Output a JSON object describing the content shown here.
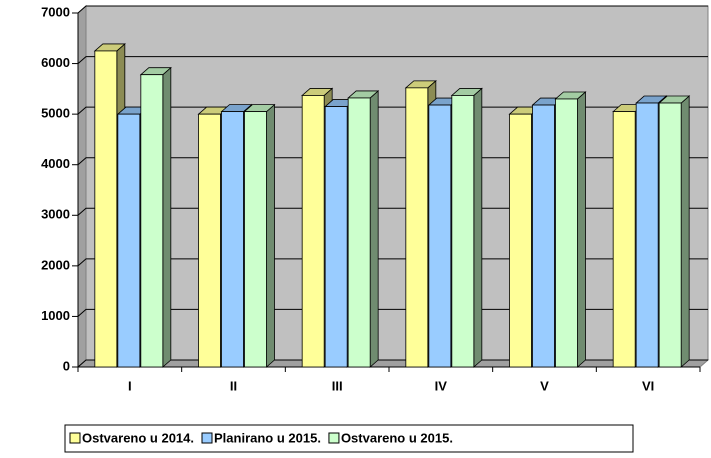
{
  "chart_data": {
    "type": "bar",
    "categories": [
      "I",
      "II",
      "III",
      "IV",
      "V",
      "VI"
    ],
    "series": [
      {
        "name": "Ostvareno u 2014.",
        "color": "#ffff99",
        "values": [
          6250,
          5000,
          5370,
          5520,
          5000,
          5050
        ]
      },
      {
        "name": "Planirano u 2015.",
        "color": "#99ccff",
        "values": [
          5000,
          5050,
          5150,
          5180,
          5180,
          5220
        ]
      },
      {
        "name": "Ostvareno u 2015.",
        "color": "#ccffcc",
        "values": [
          5780,
          5050,
          5320,
          5370,
          5300,
          5220
        ]
      }
    ],
    "ylim": [
      0,
      7000
    ],
    "yticks": [
      0,
      1000,
      2000,
      3000,
      4000,
      5000,
      6000,
      7000
    ],
    "grid": true,
    "legend": "bottom"
  }
}
